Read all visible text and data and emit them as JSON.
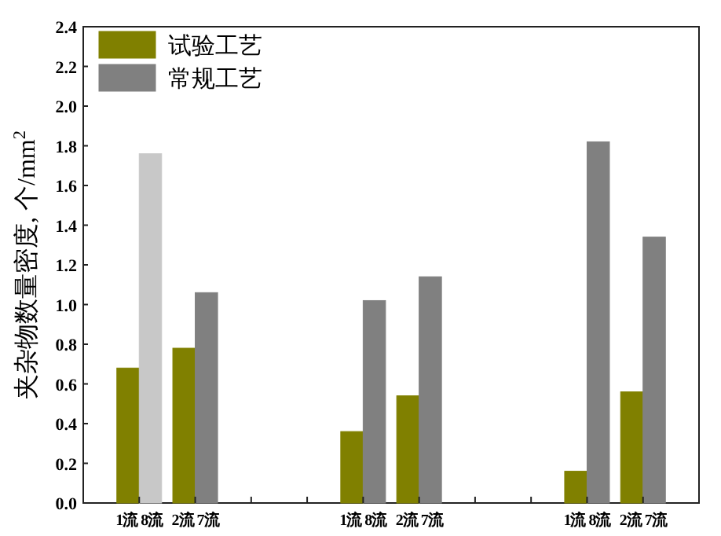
{
  "chart_data": {
    "type": "bar",
    "ylabel": "夹杂物数量密度, 个/mm$^{2}$",
    "categories": [
      "1流 8流",
      "2流 7流",
      null,
      null,
      "1流 8流",
      "2流 7流",
      null,
      null,
      "1流 8流",
      "2流 7流"
    ],
    "series": [
      {
        "name": "试验工艺",
        "color": "#808000",
        "values": [
          0.68,
          0.78,
          null,
          null,
          0.36,
          0.54,
          null,
          null,
          0.16,
          0.56
        ]
      },
      {
        "name": "常规工艺",
        "color": "#808080",
        "colors": [
          "#c8c8c8",
          "#808080",
          null,
          null,
          "#808080",
          "#808080",
          null,
          null,
          "#808080",
          "#808080"
        ],
        "values": [
          1.76,
          1.06,
          null,
          null,
          1.02,
          1.14,
          null,
          null,
          1.82,
          1.34
        ]
      }
    ],
    "ylim": [
      0,
      2.4
    ],
    "yticks": [
      {
        "value": 0,
        "label": "0.0"
      },
      0.2,
      0.4,
      0.6,
      0.8,
      {
        "value": 1,
        "label": "1.0"
      },
      1.2,
      1.4,
      1.6,
      1.8,
      {
        "value": 2,
        "label": "2.0"
      },
      2.2,
      2.4
    ],
    "legend": "top left",
    "grid": false
  }
}
